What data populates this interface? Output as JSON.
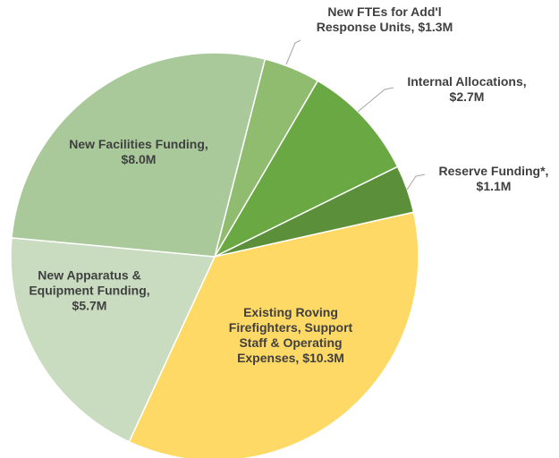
{
  "chart_data": {
    "type": "pie",
    "categories": [
      "New FTEs for Add'l Response Units,",
      "Internal Allocations,",
      "Reserve Funding*,",
      "Existing Roving Firefighters, Support Staff & Operating Expenses,",
      "New Apparatus & Equipment Funding,",
      "New Facilities Funding,"
    ],
    "values": [
      1.3,
      2.7,
      1.1,
      10.3,
      5.7,
      8.0
    ],
    "value_labels": [
      "$1.3M",
      "$2.7M",
      "$1.1M",
      "$10.3M",
      "$5.7M",
      "$8.0M"
    ],
    "colors": [
      "#8fbc6f",
      "#6aa843",
      "#5b8f3a",
      "#ffd966",
      "#c9dcc0",
      "#a9c99a"
    ]
  }
}
